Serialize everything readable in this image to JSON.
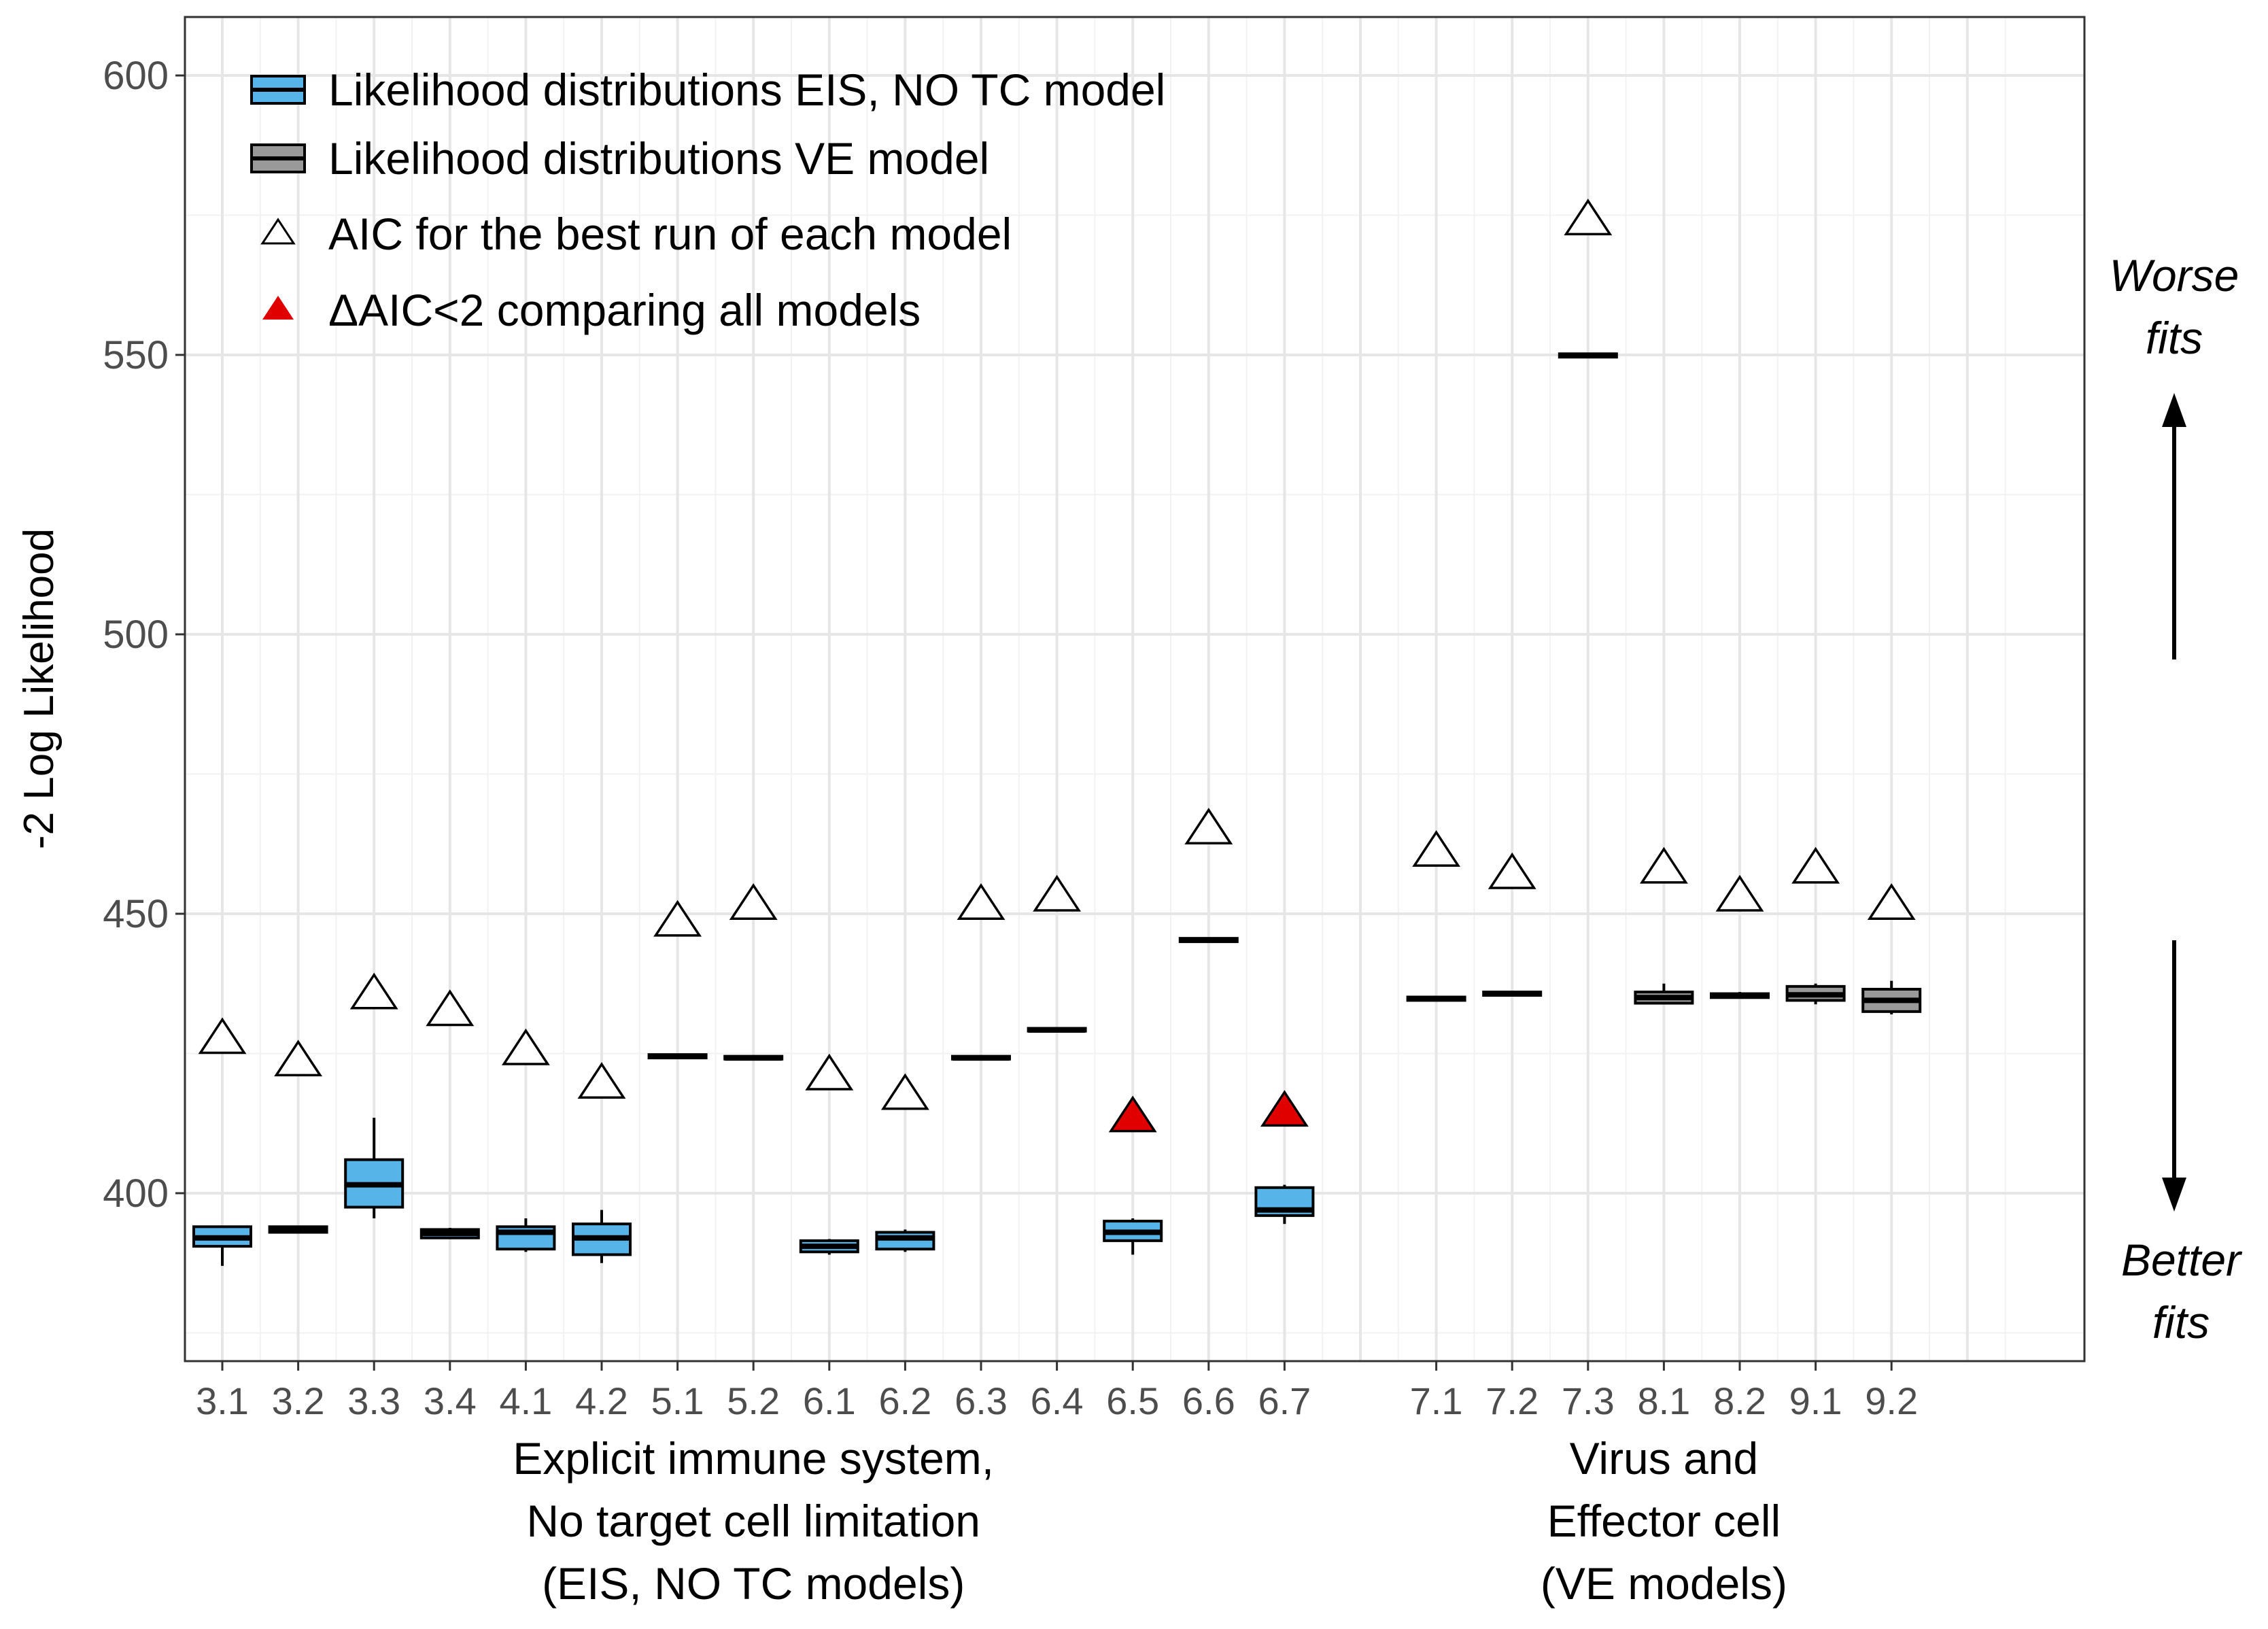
{
  "chart_data": {
    "type": "box",
    "ylabel": "-2 Log Likelihood",
    "ylim": [
      370,
      610
    ],
    "yticks": [
      400,
      450,
      500,
      550,
      600
    ],
    "grid": true,
    "legend_position": "top-left",
    "legend": [
      {
        "label": "Likelihood distributions EIS, NO TC model",
        "symbol": "box",
        "color": "#56b4e9"
      },
      {
        "label": "Likelihood distributions VE model",
        "symbol": "box",
        "color": "#999999"
      },
      {
        "label": "AIC for the best run of each model",
        "symbol": "open-triangle",
        "color": "#ffffff"
      },
      {
        "label": "ΔAIC<2 comparing all models",
        "symbol": "filled-triangle",
        "color": "#e00000"
      }
    ],
    "groups": [
      {
        "label_lines": [
          "Explicit immune system,",
          "No target cell limitation",
          "(EIS, NO TC models)"
        ],
        "first": 0,
        "last": 14
      },
      {
        "label_lines": [
          "Virus and",
          "Effector cell",
          "(VE models)"
        ],
        "first": 15,
        "last": 21
      }
    ],
    "side_annotations": {
      "worse": [
        "Worse",
        "fits"
      ],
      "better": [
        "Better",
        "fits"
      ]
    },
    "colors": {
      "eis": "#56b4e9",
      "ve": "#999999",
      "highlight": "#e00000"
    },
    "categories": [
      {
        "label": "3.1",
        "slot": 1,
        "model": "eis",
        "box": [
          387.0,
          390.5,
          392.0,
          394.0,
          394.0
        ],
        "aic": 427.5,
        "highlight": false
      },
      {
        "label": "3.2",
        "slot": 2,
        "model": "eis",
        "box": [
          392.8,
          393.0,
          393.5,
          394.0,
          394.2
        ],
        "aic": 423.5,
        "highlight": false
      },
      {
        "label": "3.3",
        "slot": 3,
        "model": "eis",
        "box": [
          395.5,
          397.5,
          401.5,
          406.0,
          413.5
        ],
        "aic": 435.5,
        "highlight": false
      },
      {
        "label": "3.4",
        "slot": 4,
        "model": "eis",
        "box": [
          391.8,
          392.0,
          392.8,
          393.5,
          393.8
        ],
        "aic": 432.5,
        "highlight": false
      },
      {
        "label": "4.1",
        "slot": 5,
        "model": "eis",
        "box": [
          389.5,
          390.0,
          393.0,
          394.0,
          395.5
        ],
        "aic": 425.5,
        "highlight": false
      },
      {
        "label": "4.2",
        "slot": 6,
        "model": "eis",
        "box": [
          387.5,
          389.0,
          392.0,
          394.5,
          397.0
        ],
        "aic": 419.5,
        "highlight": false
      },
      {
        "label": "5.1",
        "slot": 7,
        "model": "eis",
        "box": [
          424.0,
          424.2,
          424.5,
          424.8,
          425.0
        ],
        "aic": 448.5,
        "highlight": false
      },
      {
        "label": "5.2",
        "slot": 8,
        "model": "eis",
        "box": [
          423.8,
          424.0,
          424.2,
          424.5,
          424.7
        ],
        "aic": 451.5,
        "highlight": false
      },
      {
        "label": "6.1",
        "slot": 9,
        "model": "eis",
        "box": [
          389.0,
          389.5,
          390.5,
          391.5,
          391.8
        ],
        "aic": 421.0,
        "highlight": false
      },
      {
        "label": "6.2",
        "slot": 10,
        "model": "eis",
        "box": [
          389.5,
          390.0,
          392.0,
          393.0,
          393.5
        ],
        "aic": 417.5,
        "highlight": false
      },
      {
        "label": "6.3",
        "slot": 11,
        "model": "eis",
        "box": [
          423.8,
          424.0,
          424.2,
          424.5,
          424.7
        ],
        "aic": 451.5,
        "highlight": false
      },
      {
        "label": "6.4",
        "slot": 12,
        "model": "eis",
        "box": [
          428.8,
          429.0,
          429.2,
          429.5,
          429.7
        ],
        "aic": 453.0,
        "highlight": false
      },
      {
        "label": "6.5",
        "slot": 13,
        "model": "eis",
        "box": [
          389.0,
          391.5,
          393.0,
          395.0,
          395.5
        ],
        "aic": 413.5,
        "highlight": true
      },
      {
        "label": "6.6",
        "slot": 14,
        "model": "eis",
        "box": [
          444.8,
          445.0,
          445.3,
          445.6,
          445.8
        ],
        "aic": 465.0,
        "highlight": false
      },
      {
        "label": "6.7",
        "slot": 15,
        "model": "eis",
        "box": [
          394.5,
          396.0,
          397.0,
          401.0,
          401.5
        ],
        "aic": 414.5,
        "highlight": true
      },
      {
        "label": "7.1",
        "slot": 17,
        "model": "ve",
        "box": [
          434.3,
          434.5,
          434.8,
          435.1,
          435.3
        ],
        "aic": 461.0,
        "highlight": false
      },
      {
        "label": "7.2",
        "slot": 18,
        "model": "ve",
        "box": [
          435.2,
          435.4,
          435.7,
          436.0,
          436.2
        ],
        "aic": 457.0,
        "highlight": false
      },
      {
        "label": "7.3",
        "slot": 19,
        "model": "ve",
        "box": [
          549.4,
          549.6,
          549.9,
          550.2,
          550.4
        ],
        "aic": 574.0,
        "highlight": false
      },
      {
        "label": "8.1",
        "slot": 20,
        "model": "ve",
        "box": [
          433.8,
          434.0,
          435.0,
          436.0,
          437.5
        ],
        "aic": 458.0,
        "highlight": false
      },
      {
        "label": "8.2",
        "slot": 21,
        "model": "ve",
        "box": [
          434.8,
          435.0,
          435.3,
          435.7,
          436.0
        ],
        "aic": 453.0,
        "highlight": false
      },
      {
        "label": "9.1",
        "slot": 22,
        "model": "ve",
        "box": [
          433.8,
          434.5,
          435.5,
          437.0,
          437.5
        ],
        "aic": 458.0,
        "highlight": false
      },
      {
        "label": "9.2",
        "slot": 23,
        "model": "ve",
        "box": [
          432.0,
          432.5,
          434.5,
          436.5,
          438.0
        ],
        "aic": 451.5,
        "highlight": false
      }
    ]
  }
}
